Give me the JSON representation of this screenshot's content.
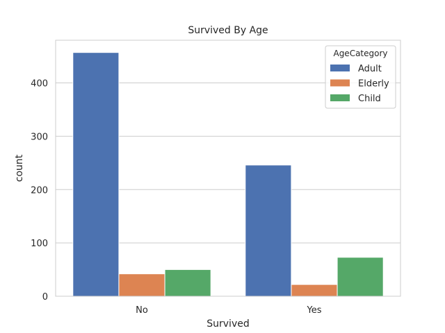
{
  "chart_data": {
    "type": "bar",
    "title": "Survived By Age",
    "xlabel": "Survived",
    "ylabel": "count",
    "categories": [
      "No",
      "Yes"
    ],
    "series": [
      {
        "name": "Adult",
        "values": [
          457,
          246
        ],
        "color": "#4c72b0"
      },
      {
        "name": "Elderly",
        "values": [
          42,
          22
        ],
        "color": "#dd8452"
      },
      {
        "name": "Child",
        "values": [
          50,
          73
        ],
        "color": "#55a868"
      }
    ],
    "ylim": [
      0,
      480
    ],
    "yticks": [
      0,
      100,
      200,
      300,
      400
    ],
    "grid": true,
    "legend": {
      "title": "AgeCategory",
      "placement": "top-right"
    }
  }
}
